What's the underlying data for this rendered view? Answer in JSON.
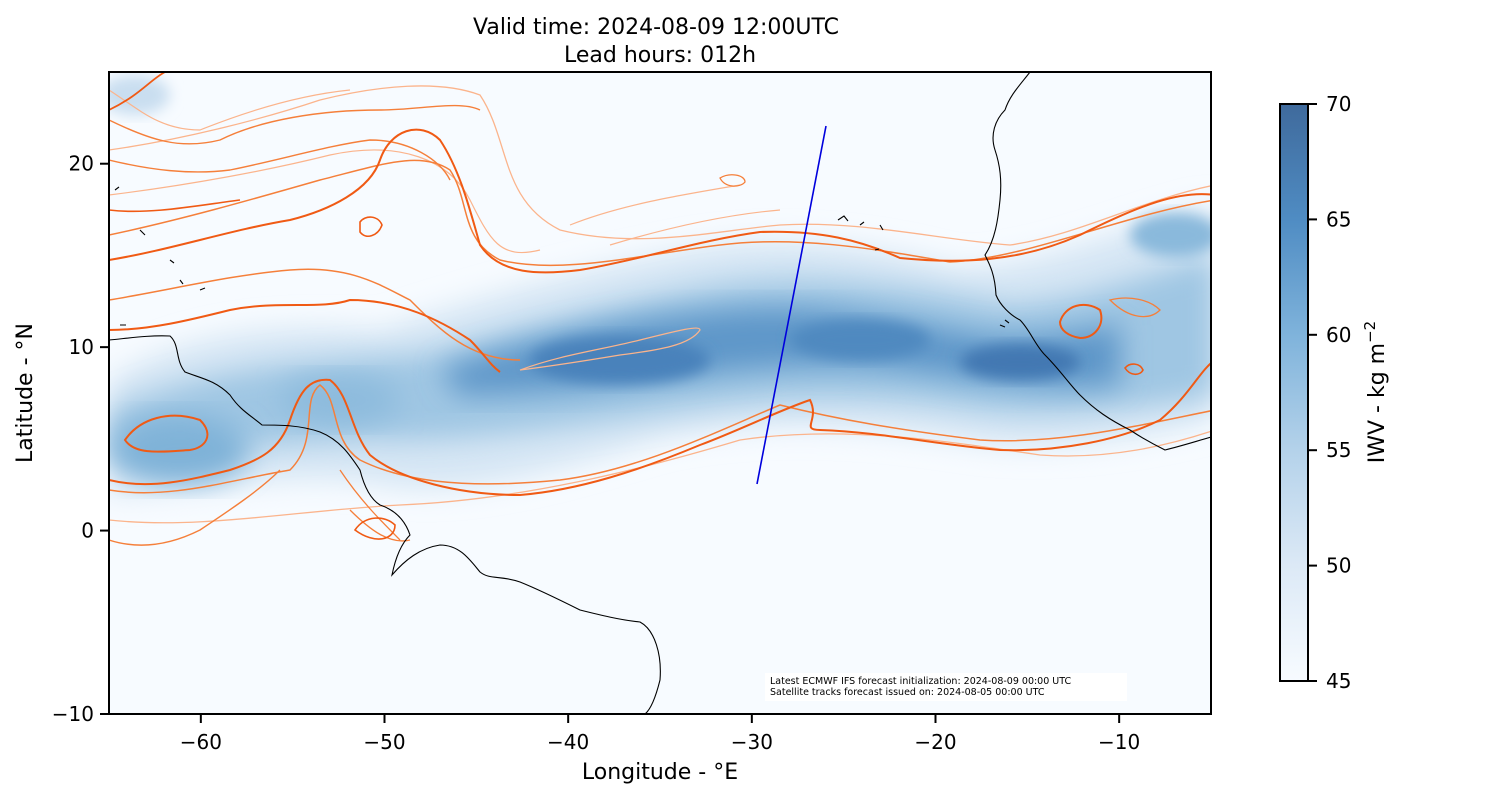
{
  "title": {
    "line1": "Valid time: 2024-08-09 12:00UTC",
    "line2": "Lead hours: 012h"
  },
  "map": {
    "xlabel": "Longitude - °E",
    "ylabel": "Latitude - °N",
    "lon_range": [
      -65,
      -5
    ],
    "lat_range": [
      -10,
      25
    ],
    "x_ticks": [
      "−60",
      "−50",
      "−40",
      "−30",
      "−20",
      "−10"
    ],
    "y_ticks": [
      "−10",
      "0",
      "10",
      "20"
    ],
    "satellite_track": [
      [
        -29.6,
        2.6
      ],
      [
        -25.9,
        22.0
      ]
    ],
    "track_color": "#0000dd",
    "contour_colors": [
      "#f05a14",
      "#f57f3a",
      "#fbb48c"
    ],
    "coast_color": "#000000"
  },
  "colorbar": {
    "label": "IWV - kg m",
    "label_sup": "−2",
    "range": [
      45,
      70
    ],
    "ticks": [
      "45",
      "50",
      "55",
      "60",
      "65",
      "70"
    ],
    "color_low": "#f7fbff",
    "color_high": "#3f6a9c"
  },
  "annotation": {
    "line1": "Latest ECMWF IFS forecast initialization: 2024-08-09 00:00 UTC",
    "line2": "Satellite tracks forecast issued on: 2024-08-05 00:00 UTC"
  }
}
